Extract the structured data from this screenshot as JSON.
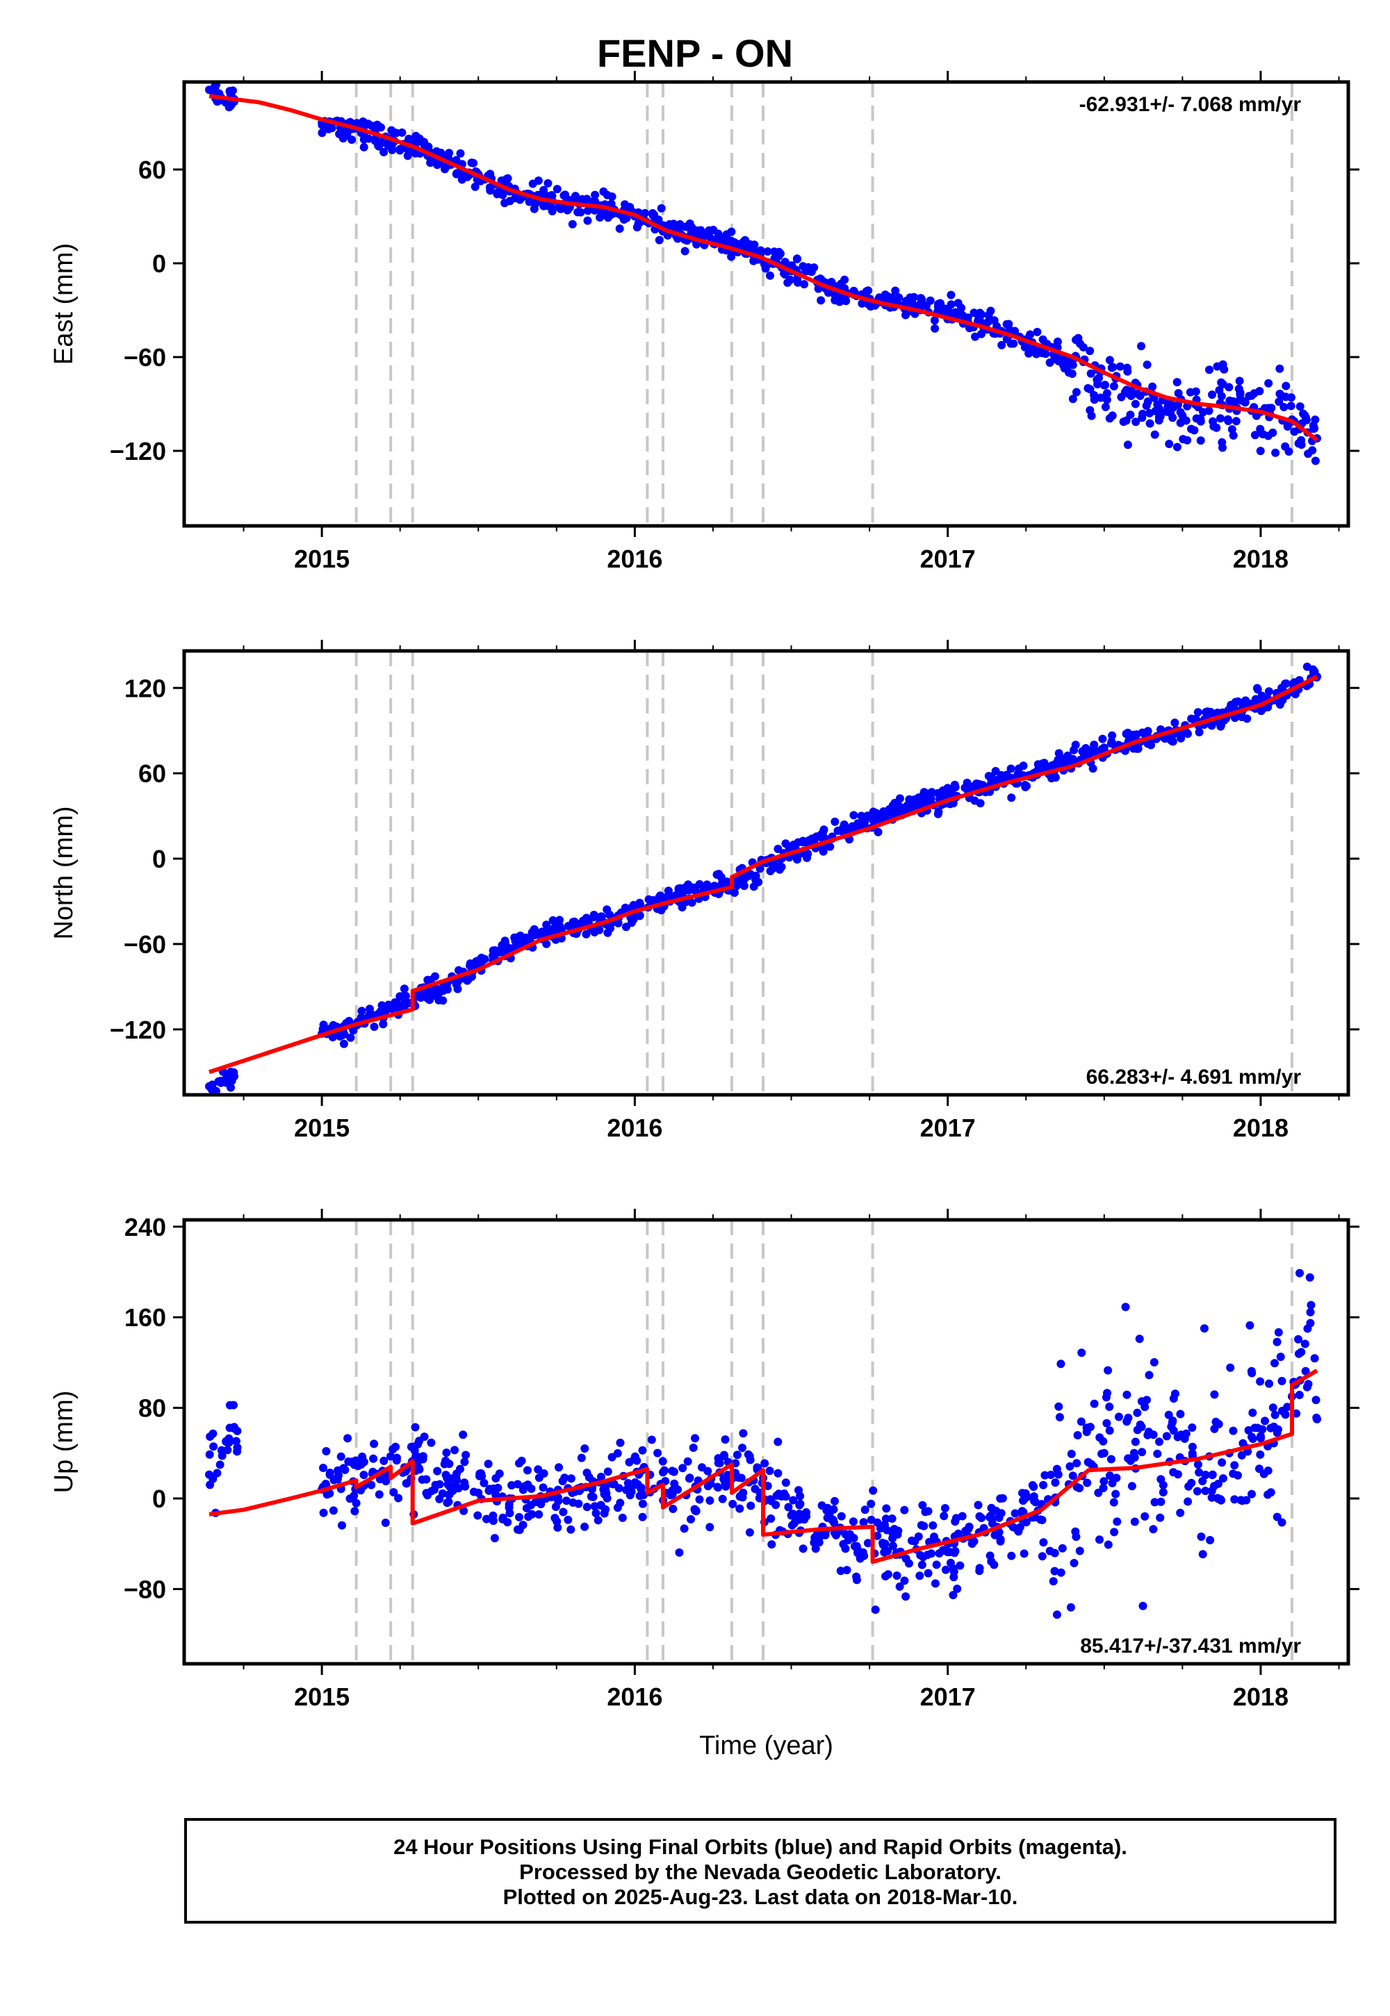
{
  "page": {
    "title": "FENP - ON"
  },
  "colors": {
    "data": "#0000ff",
    "model": "#ff0000",
    "offsets": "#c8c8c8"
  },
  "caption": {
    "line1": "24 Hour Positions Using Final Orbits (blue) and Rapid Orbits (magenta).",
    "line2": "Processed by the Nevada Geodetic Laboratory.",
    "line3": "Plotted on 2025-Aug-23. Last data on 2018-Mar-10."
  },
  "chart_data": [
    {
      "type": "scatter",
      "title": "FENP - ON",
      "xlabel": "",
      "ylabel": "East (mm)",
      "xlim": [
        2014.56,
        2018.28
      ],
      "ylim": [
        -168,
        116
      ],
      "xticks": [
        2015,
        2016,
        2017,
        2018
      ],
      "yticks": [
        60,
        0,
        -60,
        -120
      ],
      "rate_label": "-62.931+/- 7.068 mm/yr",
      "rate_position": "top-right",
      "offset_epochs": [
        2015.11,
        2015.22,
        2015.29,
        2016.04,
        2016.09,
        2016.31,
        2016.41,
        2016.76,
        2018.1
      ],
      "series": [
        {
          "style": "dots",
          "x": [
            2014.64,
            2014.72,
            2015.0,
            2015.1,
            2015.2,
            2015.3,
            2015.4,
            2015.5,
            2015.6,
            2015.7,
            2015.8,
            2015.9,
            2016.0,
            2016.1,
            2016.2,
            2016.3,
            2016.4,
            2016.5,
            2016.6,
            2016.7,
            2016.8,
            2016.9,
            2017.0,
            2017.1,
            2017.2,
            2017.3,
            2017.4,
            2017.5,
            2017.6,
            2017.7,
            2017.8,
            2017.9,
            2018.0,
            2018.1,
            2018.18
          ],
          "y": [
            111,
            105,
            90,
            86,
            80,
            73,
            65,
            57,
            46,
            41,
            39,
            35,
            30,
            23,
            17,
            12,
            5,
            -5,
            -14,
            -20,
            -25,
            -28,
            -32,
            -37,
            -45,
            -55,
            -65,
            -78,
            -90,
            -95,
            -92,
            -93,
            -95,
            -100,
            -112
          ]
        },
        {
          "style": "line",
          "x": [
            2014.64,
            2014.8,
            2014.9,
            2015.0,
            2015.1,
            2015.2,
            2015.3,
            2015.4,
            2015.5,
            2015.6,
            2015.7,
            2015.8,
            2015.9,
            2016.0,
            2016.05,
            2016.1,
            2016.2,
            2016.3,
            2016.4,
            2016.5,
            2016.6,
            2016.7,
            2016.8,
            2016.9,
            2017.0,
            2017.1,
            2017.2,
            2017.3,
            2017.4,
            2017.5,
            2017.6,
            2017.7,
            2017.8,
            2017.9,
            2018.0,
            2018.1,
            2018.18
          ],
          "y": [
            107,
            103,
            98,
            92,
            87,
            81,
            74,
            65,
            56,
            47,
            41,
            38,
            36,
            31,
            26,
            21,
            15,
            10,
            4,
            -5,
            -14,
            -21,
            -26,
            -30,
            -35,
            -40,
            -46,
            -53,
            -60,
            -70,
            -79,
            -86,
            -90,
            -92,
            -95,
            -101,
            -113
          ]
        }
      ]
    },
    {
      "type": "scatter",
      "xlabel": "",
      "ylabel": "North (mm)",
      "xlim": [
        2014.56,
        2018.28
      ],
      "ylim": [
        -166,
        146
      ],
      "xticks": [
        2015,
        2016,
        2017,
        2018
      ],
      "yticks": [
        120,
        60,
        0,
        -60,
        -120
      ],
      "rate_label": "66.283+/- 4.691 mm/yr",
      "rate_position": "bottom-right",
      "offset_epochs": [
        2015.11,
        2015.22,
        2015.29,
        2016.04,
        2016.09,
        2016.31,
        2016.41,
        2016.76,
        2018.1
      ],
      "series": [
        {
          "style": "dots",
          "x": [
            2014.64,
            2014.72,
            2015.0,
            2015.1,
            2015.2,
            2015.3,
            2015.4,
            2015.5,
            2015.6,
            2015.7,
            2015.8,
            2015.9,
            2016.0,
            2016.1,
            2016.2,
            2016.3,
            2016.4,
            2016.5,
            2016.6,
            2016.7,
            2016.8,
            2016.9,
            2017.0,
            2017.1,
            2017.2,
            2017.3,
            2017.4,
            2017.5,
            2017.6,
            2017.7,
            2017.8,
            2017.9,
            2018.0,
            2018.1,
            2018.18
          ],
          "y": [
            -160,
            -153,
            -123,
            -117,
            -108,
            -97,
            -88,
            -76,
            -63,
            -55,
            -48,
            -45,
            -38,
            -30,
            -24,
            -18,
            -7,
            4,
            14,
            22,
            30,
            37,
            44,
            50,
            56,
            62,
            70,
            78,
            82,
            85,
            95,
            105,
            110,
            118,
            128
          ]
        },
        {
          "style": "line",
          "x": [
            2014.64,
            2015.0,
            2015.1,
            2015.29,
            2015.29,
            2015.5,
            2015.7,
            2015.9,
            2016.0,
            2016.1,
            2016.31,
            2016.31,
            2016.41,
            2016.5,
            2016.76,
            2017.0,
            2017.2,
            2017.4,
            2017.6,
            2017.8,
            2018.0,
            2018.1,
            2018.18
          ],
          "y": [
            -150,
            -124,
            -117,
            -106,
            -93,
            -78,
            -57,
            -45,
            -37,
            -31,
            -20,
            -13,
            -2,
            4,
            22,
            41,
            54,
            65,
            82,
            95,
            108,
            119,
            128
          ]
        }
      ]
    },
    {
      "type": "scatter",
      "xlabel": "Time (year)",
      "ylabel": "Up (mm)",
      "xlim": [
        2014.56,
        2018.28
      ],
      "ylim": [
        -146,
        246
      ],
      "xticks": [
        2015,
        2016,
        2017,
        2018
      ],
      "yticks": [
        240,
        160,
        80,
        0,
        -80
      ],
      "rate_label": "85.417+/-37.431 mm/yr",
      "rate_position": "bottom-right",
      "offset_epochs": [
        2015.11,
        2015.22,
        2015.29,
        2016.04,
        2016.09,
        2016.31,
        2016.41,
        2016.76,
        2018.1
      ],
      "series": [
        {
          "style": "dots",
          "x": [
            2014.64,
            2014.72,
            2014.73,
            2015.0,
            2015.1,
            2015.2,
            2015.3,
            2015.4,
            2015.5,
            2015.6,
            2015.7,
            2015.8,
            2015.9,
            2016.0,
            2016.1,
            2016.2,
            2016.3,
            2016.4,
            2016.5,
            2016.6,
            2016.7,
            2016.8,
            2016.9,
            2017.0,
            2017.1,
            2017.2,
            2017.3,
            2017.4,
            2017.5,
            2017.6,
            2017.7,
            2017.8,
            2017.9,
            2018.0,
            2018.1,
            2018.15,
            2018.18
          ],
          "y": [
            21,
            63,
            45,
            8,
            15,
            22,
            28,
            18,
            5,
            0,
            -5,
            5,
            8,
            12,
            5,
            8,
            15,
            5,
            -15,
            -25,
            -35,
            -40,
            -45,
            -40,
            -30,
            -20,
            -5,
            20,
            40,
            50,
            55,
            30,
            40,
            55,
            90,
            150,
            70
          ]
        },
        {
          "style": "line",
          "x": [
            2014.64,
            2014.75,
            2014.9,
            2015.0,
            2015.11,
            2015.11,
            2015.22,
            2015.22,
            2015.29,
            2015.29,
            2015.5,
            2015.7,
            2015.9,
            2016.04,
            2016.04,
            2016.09,
            2016.09,
            2016.31,
            2016.31,
            2016.41,
            2016.41,
            2016.6,
            2016.76,
            2016.76,
            2016.9,
            2017.1,
            2017.3,
            2017.45,
            2017.6,
            2017.8,
            2018.0,
            2018.1,
            2018.1,
            2018.18
          ],
          "y": [
            -14,
            -10,
            0,
            7,
            16,
            10,
            28,
            18,
            33,
            -22,
            -2,
            2,
            15,
            26,
            5,
            12,
            -8,
            30,
            5,
            25,
            -32,
            -27,
            -25,
            -56,
            -45,
            -32,
            -10,
            25,
            27,
            35,
            48,
            57,
            100,
            113
          ]
        }
      ]
    }
  ]
}
